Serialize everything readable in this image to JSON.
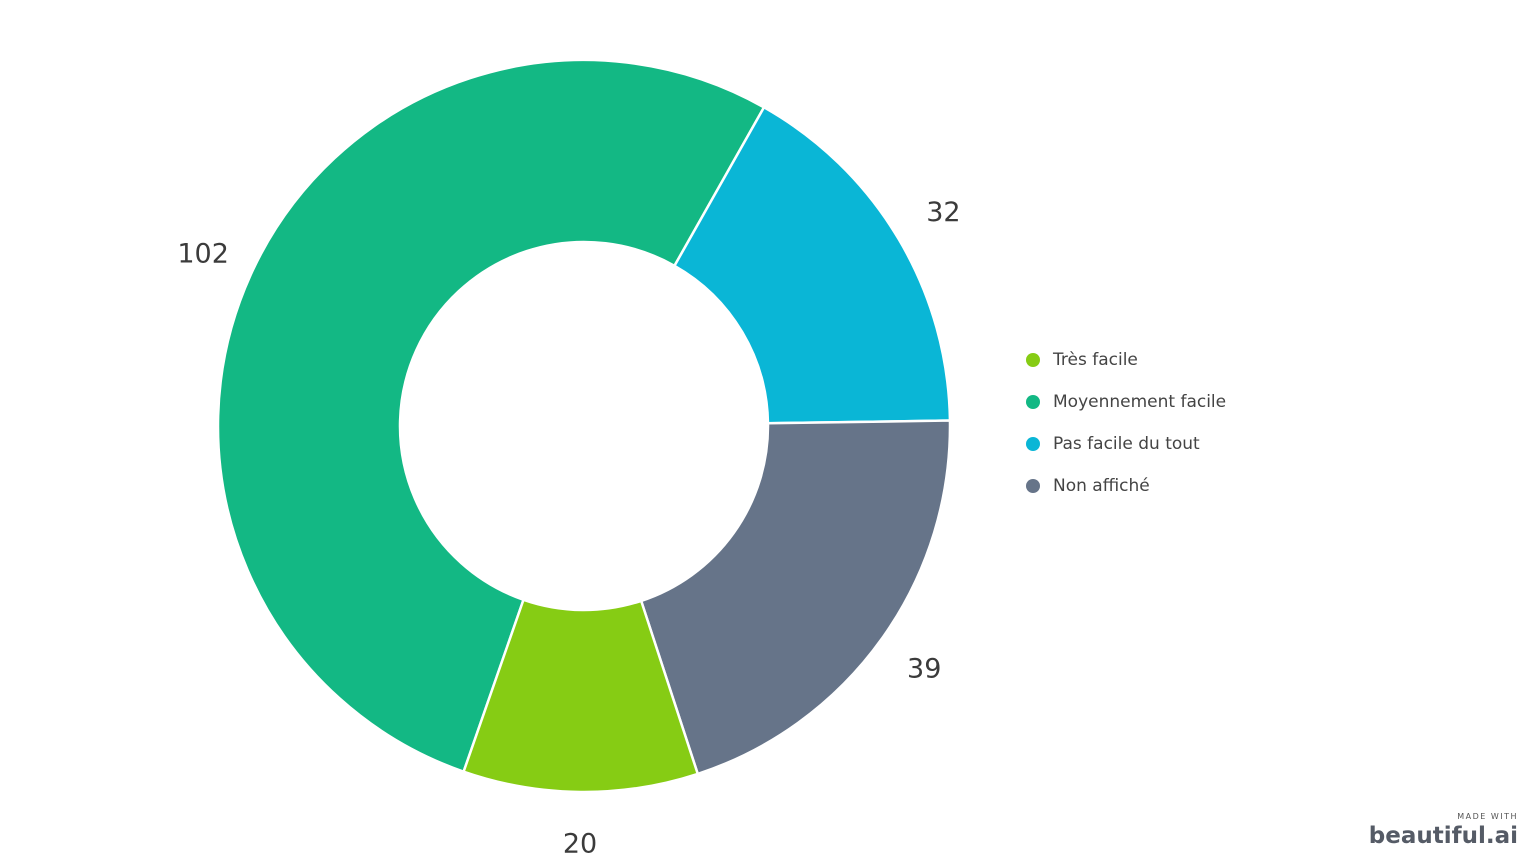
{
  "chart_data": {
    "type": "pie",
    "title": "",
    "categories": [
      "Très facile",
      "Moyennement facile",
      "Pas facile du tout",
      "Non affiché"
    ],
    "values": [
      20,
      102,
      32,
      39
    ],
    "colors": [
      "#86cc14",
      "#13b884",
      "#0ab6d6",
      "#667489"
    ],
    "donut": true,
    "legend_position": "right",
    "data_labels": [
      "20",
      "102",
      "32",
      "39"
    ]
  },
  "watermark": {
    "line1": "MADE WITH",
    "line2": "beautiful.ai"
  }
}
